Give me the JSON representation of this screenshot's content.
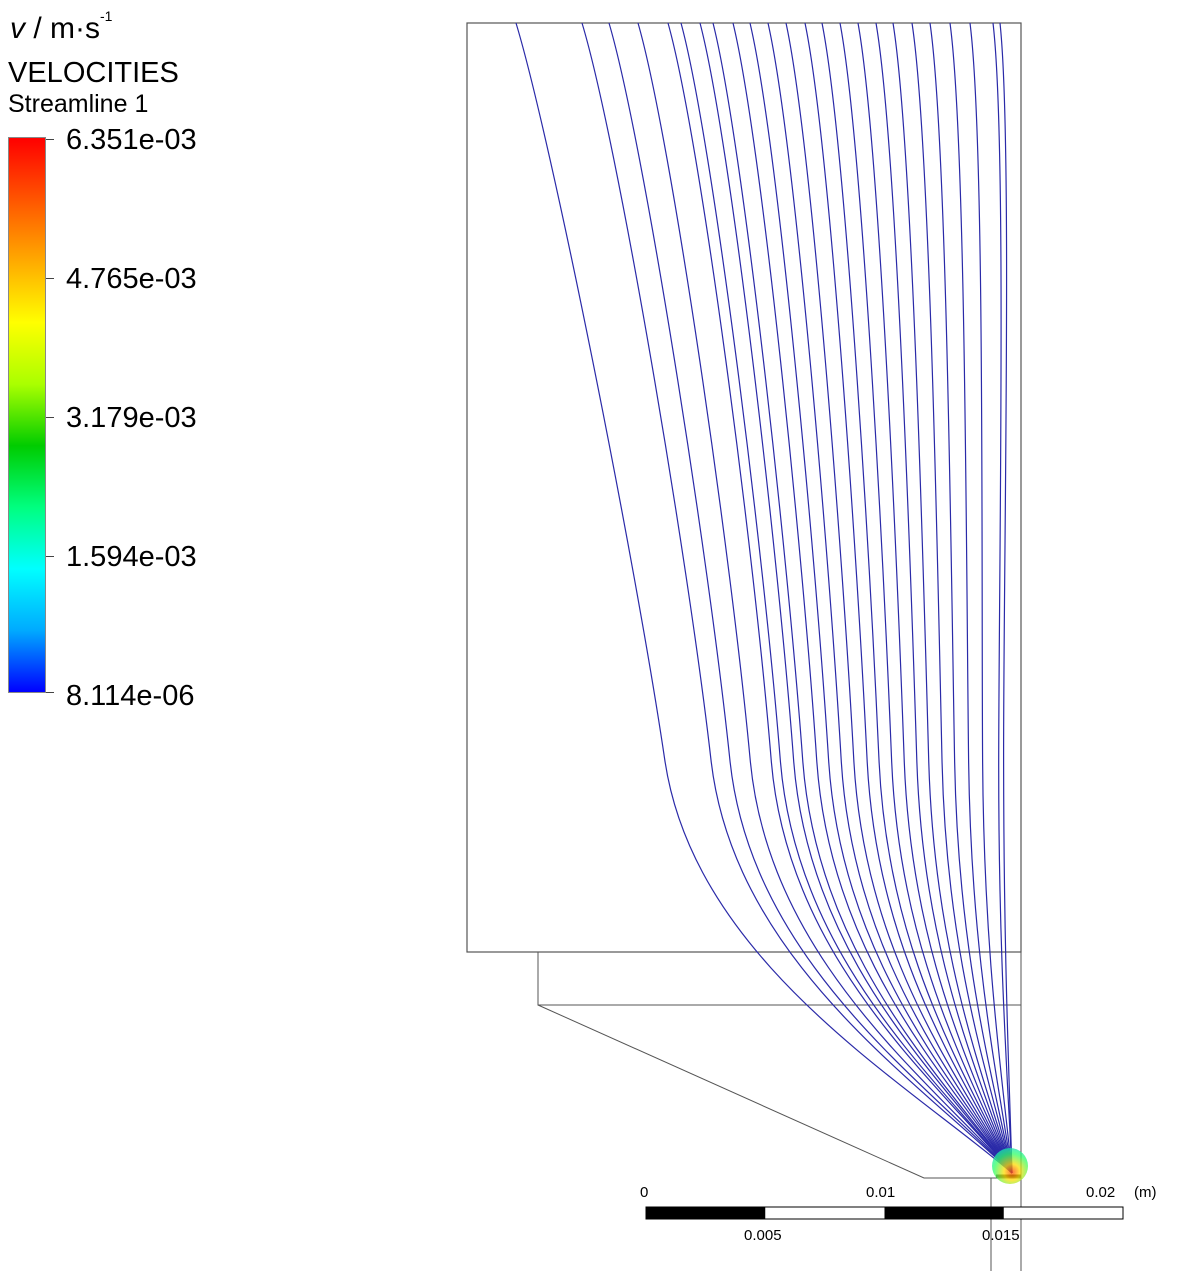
{
  "legend": {
    "unit_symbol": "v",
    "unit_text": " / m·s",
    "unit_exponent": "-1",
    "title": "VELOCITIES",
    "subtitle": "Streamline 1",
    "colormap": [
      "#0000ff",
      "#00aaff",
      "#00ffff",
      "#00ff80",
      "#00cc00",
      "#aaff00",
      "#ffff00",
      "#ffaa00",
      "#ff5500",
      "#ff0000"
    ],
    "ticks": [
      "6.351e-03",
      "4.765e-03",
      "3.179e-03",
      "1.594e-03",
      "8.114e-06"
    ]
  },
  "scale_bar": {
    "top_labels": [
      "0",
      "0.01",
      "0.02"
    ],
    "unit": "(m)",
    "bottom_labels": [
      "0.005",
      "0.015"
    ]
  },
  "streamline_color": "#2a2aa8",
  "outline_color": "#555555"
}
